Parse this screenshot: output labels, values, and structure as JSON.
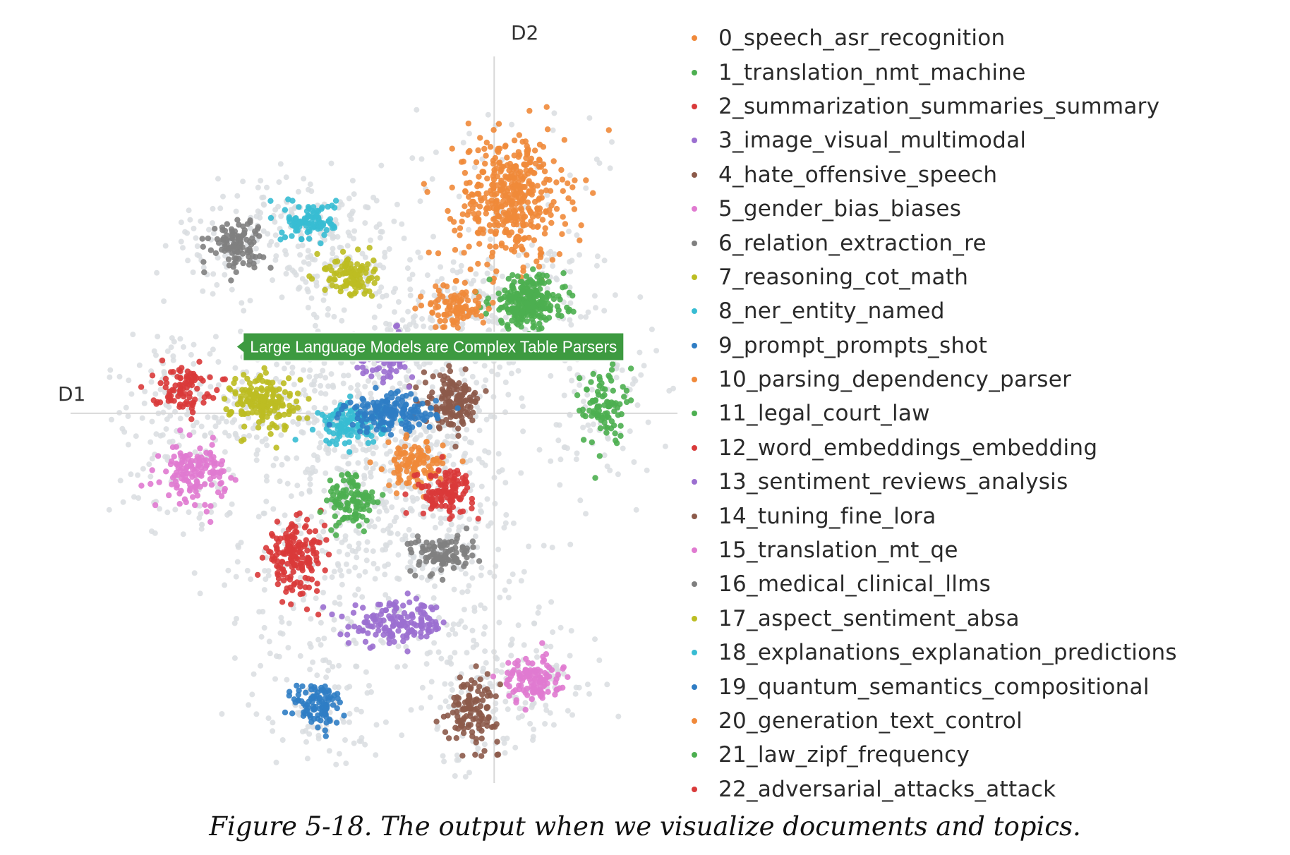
{
  "chart_data": {
    "type": "scatter",
    "x_axis_label": "D1",
    "y_axis_label": "D2",
    "xlim": [
      -10,
      4.4
    ],
    "ylim": [
      -9.8,
      8.5
    ],
    "grid": false,
    "legend_placement": "right",
    "background_points_color": "#d9dde0",
    "topics": [
      {
        "id": 0,
        "label": "0_speech_asr_recognition",
        "color": "#f0893a",
        "center": [
          0.4,
          5.8
        ],
        "spread": [
          0.65,
          0.85
        ],
        "count": 420
      },
      {
        "id": 1,
        "label": "1_translation_nmt_machine",
        "color": "#4caf50",
        "center": [
          0.8,
          3.0
        ],
        "spread": [
          0.45,
          0.35
        ],
        "count": 260
      },
      {
        "id": 2,
        "label": "2_summarization_summaries_summary",
        "color": "#d93a3a",
        "center": [
          -4.8,
          -3.9
        ],
        "spread": [
          0.35,
          0.45
        ],
        "count": 170
      },
      {
        "id": 3,
        "label": "3_image_visual_multimodal",
        "color": "#9b6fd0",
        "center": [
          -2.3,
          -5.7
        ],
        "spread": [
          0.6,
          0.28
        ],
        "count": 150
      },
      {
        "id": 4,
        "label": "4_hate_offensive_speech",
        "color": "#8c5a4a",
        "center": [
          -1.0,
          0.3
        ],
        "spread": [
          0.35,
          0.35
        ],
        "count": 140
      },
      {
        "id": 5,
        "label": "5_gender_bias_biases",
        "color": "#e07ad0",
        "center": [
          -7.2,
          -1.6
        ],
        "spread": [
          0.38,
          0.38
        ],
        "count": 140
      },
      {
        "id": 6,
        "label": "6_relation_extraction_re",
        "color": "#7f7f7f",
        "center": [
          -6.2,
          4.6
        ],
        "spread": [
          0.32,
          0.32
        ],
        "count": 110
      },
      {
        "id": 7,
        "label": "7_reasoning_cot_math",
        "color": "#bcbd22",
        "center": [
          -5.5,
          0.3
        ],
        "spread": [
          0.4,
          0.38
        ],
        "count": 170
      },
      {
        "id": 8,
        "label": "8_ner_entity_named",
        "color": "#37bcd3",
        "center": [
          -3.4,
          -0.3
        ],
        "spread": [
          0.38,
          0.28
        ],
        "count": 130
      },
      {
        "id": 9,
        "label": "9_prompt_prompts_shot",
        "color": "#2f7dc4",
        "center": [
          -2.5,
          0.0
        ],
        "spread": [
          0.55,
          0.25
        ],
        "count": 160
      },
      {
        "id": 10,
        "label": "10_parsing_dependency_parser",
        "color": "#f0893a",
        "center": [
          -1.9,
          -1.4
        ],
        "spread": [
          0.35,
          0.3
        ],
        "count": 110
      },
      {
        "id": 11,
        "label": "11_legal_court_law",
        "color": "#4caf50",
        "center": [
          -3.4,
          -2.4
        ],
        "spread": [
          0.3,
          0.4
        ],
        "count": 110
      },
      {
        "id": 12,
        "label": "12_word_embeddings_embedding",
        "color": "#d93a3a",
        "center": [
          -1.2,
          -2.1
        ],
        "spread": [
          0.35,
          0.3
        ],
        "count": 120
      },
      {
        "id": 13,
        "label": "13_sentiment_reviews_analysis",
        "color": "#9b6fd0",
        "center": [
          -2.6,
          1.6
        ],
        "spread": [
          0.35,
          0.3
        ],
        "count": 100
      },
      {
        "id": 14,
        "label": "14_tuning_fine_lora",
        "color": "#8c5a4a",
        "center": [
          -0.5,
          -8.0
        ],
        "spread": [
          0.3,
          0.45
        ],
        "count": 120
      },
      {
        "id": 15,
        "label": "15_translation_mt_qe",
        "color": "#e07ad0",
        "center": [
          0.9,
          -7.2
        ],
        "spread": [
          0.35,
          0.3
        ],
        "count": 120
      },
      {
        "id": 16,
        "label": "16_medical_clinical_llms",
        "color": "#7f7f7f",
        "center": [
          -1.2,
          -3.8
        ],
        "spread": [
          0.4,
          0.25
        ],
        "count": 100
      },
      {
        "id": 17,
        "label": "17_aspect_sentiment_absa",
        "color": "#bcbd22",
        "center": [
          -3.5,
          3.7
        ],
        "spread": [
          0.3,
          0.3
        ],
        "count": 100
      },
      {
        "id": 18,
        "label": "18_explanations_explanation_predictions",
        "color": "#37bcd3",
        "center": [
          -4.4,
          5.2
        ],
        "spread": [
          0.3,
          0.25
        ],
        "count": 100
      },
      {
        "id": 19,
        "label": "19_quantum_semantics_compositional",
        "color": "#2f7dc4",
        "center": [
          -4.2,
          -7.9
        ],
        "spread": [
          0.3,
          0.35
        ],
        "count": 100
      },
      {
        "id": 20,
        "label": "20_generation_text_control",
        "color": "#f0893a",
        "center": [
          -0.9,
          2.9
        ],
        "spread": [
          0.35,
          0.3
        ],
        "count": 100
      },
      {
        "id": 21,
        "label": "21_law_zipf_frequency",
        "color": "#4caf50",
        "center": [
          2.6,
          0.2
        ],
        "spread": [
          0.25,
          0.55
        ],
        "count": 90
      },
      {
        "id": 22,
        "label": "22_adversarial_attacks_attack",
        "color": "#d93a3a",
        "center": [
          -7.5,
          0.7
        ],
        "spread": [
          0.35,
          0.3
        ],
        "count": 90
      }
    ],
    "tooltip": {
      "text": "Large Language Models are Complex Table Parsers",
      "color": "#3d9a40",
      "anchor_point": [
        -6.2,
        1.8
      ]
    }
  },
  "caption": "Figure 5-18. The output when we visualize documents and topics."
}
